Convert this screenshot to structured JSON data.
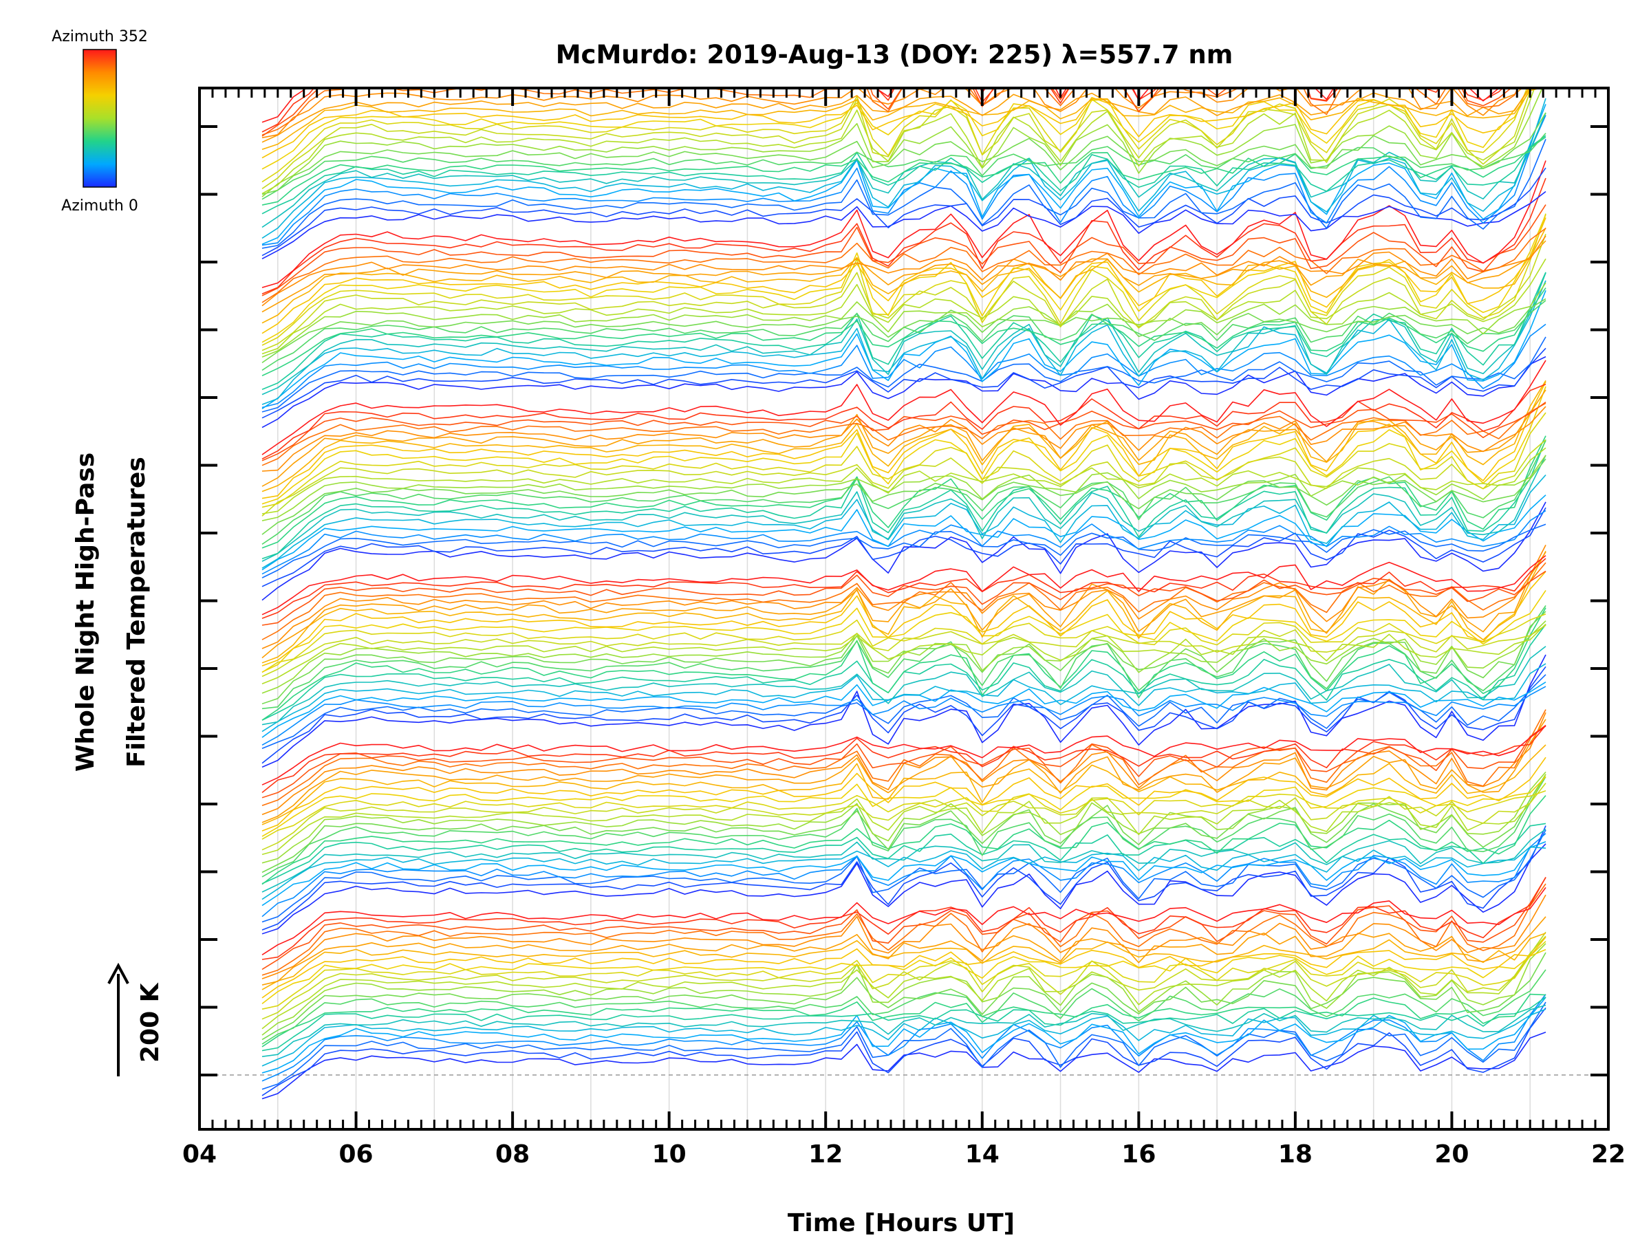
{
  "chart_data": {
    "type": "line",
    "title": "McMurdo: 2019-Aug-13 (DOY: 225) λ=557.7 nm",
    "xlabel": "Time [Hours UT]",
    "ylabel_lines": [
      "Whole Night High-Pass",
      "Filtered Temperatures"
    ],
    "xlim": [
      4,
      22
    ],
    "x_ticks": [
      "04",
      "06",
      "08",
      "10",
      "12",
      "14",
      "16",
      "18",
      "20",
      "22"
    ],
    "x_tick_values": [
      4,
      6,
      8,
      10,
      12,
      14,
      16,
      18,
      20,
      22
    ],
    "scale_bar_label": "200 K",
    "colorbar": {
      "top_label": "Azimuth 352",
      "bottom_label": "Azimuth 0",
      "colormap": [
        "#1a2bff",
        "#00a8ff",
        "#22d38a",
        "#a8e02a",
        "#f5d000",
        "#ff8a00",
        "#ff1a1a"
      ]
    },
    "series_description": "Stacked traces, one per azimuth 0-352 deg, offset vertically, repeated in 6 bands",
    "bands": 6,
    "traces_per_band": 24,
    "time_start": 4.8,
    "time_end": 21.2,
    "common_features": [
      {
        "t": 5.0,
        "v": -1.5
      },
      {
        "t": 5.8,
        "v": 0.8
      },
      {
        "t": 6.0,
        "v": 1.0
      },
      {
        "t": 7.0,
        "v": 0.4
      },
      {
        "t": 8.0,
        "v": 0.5
      },
      {
        "t": 9.0,
        "v": 0.0
      },
      {
        "t": 10.0,
        "v": 0.4
      },
      {
        "t": 11.0,
        "v": 0.2
      },
      {
        "t": 11.7,
        "v": -0.3
      },
      {
        "t": 12.4,
        "v": 1.2
      },
      {
        "t": 12.7,
        "v": -1.0
      },
      {
        "t": 13.0,
        "v": 0.2
      },
      {
        "t": 13.7,
        "v": 1.0
      },
      {
        "t": 14.0,
        "v": -0.6
      },
      {
        "t": 14.5,
        "v": 1.1
      },
      {
        "t": 15.0,
        "v": -0.6
      },
      {
        "t": 15.5,
        "v": 1.3
      },
      {
        "t": 16.0,
        "v": -0.7
      },
      {
        "t": 16.5,
        "v": 0.6
      },
      {
        "t": 17.0,
        "v": -0.3
      },
      {
        "t": 17.5,
        "v": 0.8
      },
      {
        "t": 18.0,
        "v": 0.9
      },
      {
        "t": 18.3,
        "v": -1.0
      },
      {
        "t": 18.8,
        "v": 0.8
      },
      {
        "t": 19.3,
        "v": 1.2
      },
      {
        "t": 19.7,
        "v": -0.6
      },
      {
        "t": 20.0,
        "v": 0.5
      },
      {
        "t": 20.3,
        "v": -0.9
      },
      {
        "t": 20.8,
        "v": 0.2
      },
      {
        "t": 21.2,
        "v": 2.8
      }
    ]
  }
}
